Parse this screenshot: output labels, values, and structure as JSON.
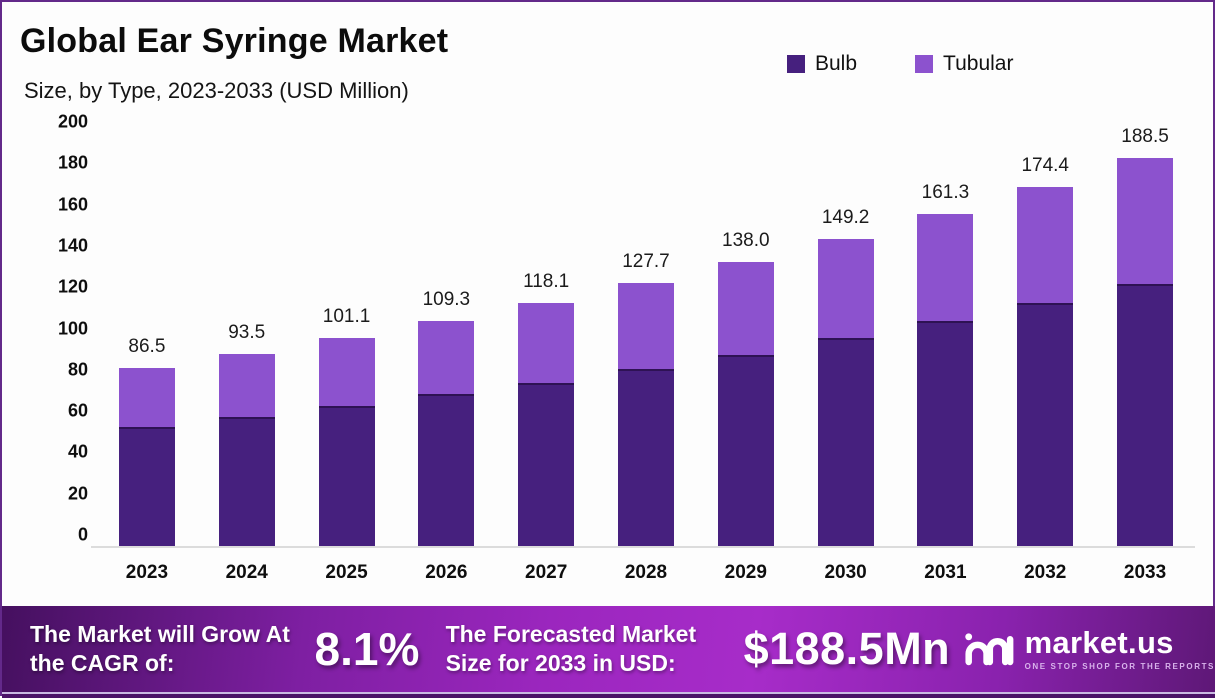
{
  "header": {
    "title": "Global Ear Syringe Market",
    "subtitle": "Size, by Type, 2023-2033 (USD Million)"
  },
  "colors": {
    "bulb": "#46207E",
    "tubular": "#8C52CE",
    "banner_start": "#45105F",
    "banner_mid": "#A72CC9",
    "banner_end": "#5E1877"
  },
  "legend": [
    {
      "label": "Bulb",
      "color": "#46207E"
    },
    {
      "label": "Tubular",
      "color": "#8C52CE"
    }
  ],
  "chart_data": {
    "type": "bar",
    "stacked": true,
    "title": "Global Ear Syringe Market Size, by Type, 2023-2033 (USD Million)",
    "categories": [
      "2023",
      "2024",
      "2025",
      "2026",
      "2027",
      "2028",
      "2029",
      "2030",
      "2031",
      "2032",
      "2033"
    ],
    "series": [
      {
        "name": "Bulb",
        "color": "#46207E",
        "values": [
          58.0,
          63.0,
          68.5,
          74.0,
          79.5,
          86.0,
          93.0,
          101.0,
          109.5,
          118.0,
          127.5
        ]
      },
      {
        "name": "Tubular",
        "color": "#8C52CE",
        "values": [
          28.5,
          30.5,
          32.6,
          35.3,
          38.6,
          41.7,
          45.0,
          48.2,
          51.8,
          56.4,
          61.0
        ]
      }
    ],
    "totals": [
      86.5,
      93.5,
      101.1,
      109.3,
      118.1,
      127.7,
      138.0,
      149.2,
      161.3,
      174.4,
      188.5
    ],
    "total_labels": [
      "86.5",
      "93.5",
      "101.1",
      "109.3",
      "118.1",
      "127.7",
      "138.0",
      "149.2",
      "161.3",
      "174.4",
      "188.5"
    ],
    "xlabel": "",
    "ylabel": "",
    "ylim": [
      0,
      200
    ],
    "yticks": [
      0,
      20,
      40,
      60,
      80,
      100,
      120,
      140,
      160,
      180,
      200
    ],
    "grid": false,
    "legend_position": "top-right"
  },
  "footer": {
    "grow_text": "The Market will Grow At the CAGR of:",
    "cagr_value": "8.1%",
    "forecast_text": "The Forecasted Market Size for 2033 in USD:",
    "forecast_value": "$188.5Mn",
    "logo_text": "market.us",
    "logo_tagline": "ONE STOP SHOP FOR THE REPORTS"
  }
}
